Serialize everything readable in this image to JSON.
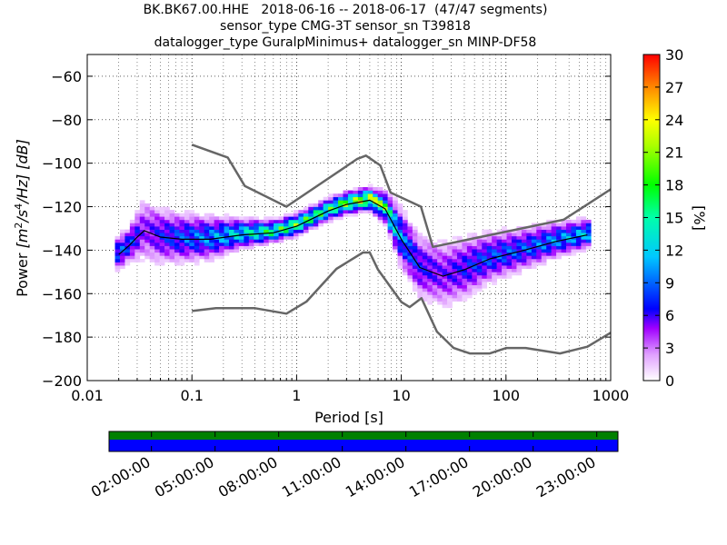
{
  "chart_data": {
    "type": "heatmap",
    "title_lines": [
      "BK.BK67.00.HHE   2018-06-16 -- 2018-06-17  (47/47 segments)",
      "sensor_type CMG-3T sensor_sn T39818",
      "datalogger_type GuralpMinimus+ datalogger_sn MINP-DF58"
    ],
    "xlabel": "Period [s]",
    "ylabel": "Power [m²/s⁴/Hz] [dB]",
    "ylabel_parts": {
      "pre": "Power ",
      "math": "[m",
      "s1": "2",
      "slash": "/s",
      "s2": "4",
      "rest": "/Hz] [dB]"
    },
    "x_scale": "log",
    "xlim": [
      0.01,
      1000
    ],
    "ylim": [
      -200,
      -50
    ],
    "x_ticks": [
      {
        "v": 0.01,
        "label": "0.01"
      },
      {
        "v": 0.1,
        "label": "0.1"
      },
      {
        "v": 1,
        "label": "1"
      },
      {
        "v": 10,
        "label": "10"
      },
      {
        "v": 100,
        "label": "100"
      },
      {
        "v": 1000,
        "label": "1000"
      }
    ],
    "y_ticks": [
      {
        "v": -60,
        "label": "−60"
      },
      {
        "v": -80,
        "label": "−80"
      },
      {
        "v": -100,
        "label": "−100"
      },
      {
        "v": -120,
        "label": "−120"
      },
      {
        "v": -140,
        "label": "−140"
      },
      {
        "v": -160,
        "label": "−160"
      },
      {
        "v": -180,
        "label": "−180"
      },
      {
        "v": -200,
        "label": "−200"
      }
    ],
    "colorbar": {
      "label": "[%]",
      "range": [
        0,
        30
      ],
      "ticks": [
        {
          "v": 0,
          "label": "0"
        },
        {
          "v": 3,
          "label": "3"
        },
        {
          "v": 6,
          "label": "6"
        },
        {
          "v": 9,
          "label": "9"
        },
        {
          "v": 12,
          "label": "12"
        },
        {
          "v": 15,
          "label": "15"
        },
        {
          "v": 18,
          "label": "18"
        },
        {
          "v": 21,
          "label": "21"
        },
        {
          "v": 24,
          "label": "24"
        },
        {
          "v": 27,
          "label": "27"
        },
        {
          "v": 30,
          "label": "30"
        }
      ],
      "colors": [
        "#ffffff",
        "#d000ff",
        "#0000ff",
        "#00ffff",
        "#00ff00",
        "#ffff00",
        "#ff0000"
      ]
    },
    "grid": true,
    "nhnm": {
      "name": "NHNM",
      "points": [
        [
          0.1,
          -91.5
        ],
        [
          0.22,
          -97.4
        ],
        [
          0.32,
          -110.5
        ],
        [
          0.8,
          -120
        ],
        [
          3.8,
          -98
        ],
        [
          4.6,
          -96.5
        ],
        [
          6.3,
          -101
        ],
        [
          7.9,
          -113.5
        ],
        [
          15.4,
          -120
        ],
        [
          20,
          -138.5
        ],
        [
          354.8,
          -126
        ],
        [
          1000,
          -112
        ]
      ]
    },
    "nlnm": {
      "name": "NLNM",
      "points": [
        [
          0.1,
          -168
        ],
        [
          0.17,
          -166.7
        ],
        [
          0.4,
          -166.7
        ],
        [
          0.8,
          -169.2
        ],
        [
          1.24,
          -163.7
        ],
        [
          2.4,
          -148.6
        ],
        [
          4.3,
          -141.1
        ],
        [
          5,
          -141.1
        ],
        [
          6,
          -149
        ],
        [
          10,
          -163.8
        ],
        [
          12,
          -166.2
        ],
        [
          15.6,
          -162.1
        ],
        [
          21.9,
          -177.5
        ],
        [
          31.6,
          -185
        ],
        [
          45,
          -187.5
        ],
        [
          70,
          -187.5
        ],
        [
          101,
          -185
        ],
        [
          154,
          -185
        ],
        [
          328,
          -187.5
        ],
        [
          600,
          -184.4
        ],
        [
          1000,
          -178
        ]
      ]
    },
    "mode": {
      "name": "mode",
      "points": [
        [
          0.02,
          -142
        ],
        [
          0.025,
          -138
        ],
        [
          0.03,
          -134
        ],
        [
          0.035,
          -131
        ],
        [
          0.05,
          -134
        ],
        [
          0.08,
          -135
        ],
        [
          0.15,
          -135
        ],
        [
          0.3,
          -133
        ],
        [
          0.6,
          -132
        ],
        [
          1.0,
          -129
        ],
        [
          2.0,
          -122
        ],
        [
          3.0,
          -119
        ],
        [
          5.0,
          -117
        ],
        [
          7.0,
          -121
        ],
        [
          10,
          -135
        ],
        [
          15,
          -148
        ],
        [
          25,
          -152
        ],
        [
          40,
          -149
        ],
        [
          70,
          -144
        ],
        [
          150,
          -140
        ],
        [
          300,
          -136
        ],
        [
          600,
          -133
        ]
      ]
    },
    "psd_density": {
      "x_centers": [
        0.02,
        0.025,
        0.03,
        0.035,
        0.05,
        0.08,
        0.15,
        0.3,
        0.6,
        1.0,
        2.0,
        3.0,
        5.0,
        7.0,
        10,
        15,
        25,
        40,
        70,
        150,
        300,
        600
      ],
      "mode_db": [
        -142,
        -138,
        -134,
        -131,
        -134,
        -135,
        -135,
        -133,
        -132,
        -129,
        -122,
        -119,
        -117,
        -121,
        -135,
        -148,
        -152,
        -149,
        -144,
        -140,
        -136,
        -133
      ],
      "spread_db": [
        5,
        5,
        7,
        10,
        8,
        7,
        6,
        4,
        3,
        3,
        3,
        3,
        3,
        4,
        8,
        9,
        10,
        9,
        7,
        6,
        5,
        4
      ],
      "peak_percent": [
        10,
        10,
        8,
        5,
        8,
        10,
        12,
        16,
        20,
        22,
        20,
        24,
        28,
        22,
        12,
        8,
        6,
        8,
        10,
        10,
        12,
        14
      ]
    },
    "timeline": {
      "ticks": [
        "02:00:00",
        "05:00:00",
        "08:00:00",
        "11:00:00",
        "14:00:00",
        "17:00:00",
        "20:00:00",
        "23:00:00"
      ],
      "tick_hours": [
        2,
        5,
        8,
        11,
        14,
        17,
        20,
        23
      ],
      "range_hours": [
        0,
        24
      ],
      "bars": [
        {
          "name": "data-coverage",
          "color": "#008000"
        },
        {
          "name": "psd-segments",
          "color": "#0000ff"
        }
      ]
    }
  }
}
